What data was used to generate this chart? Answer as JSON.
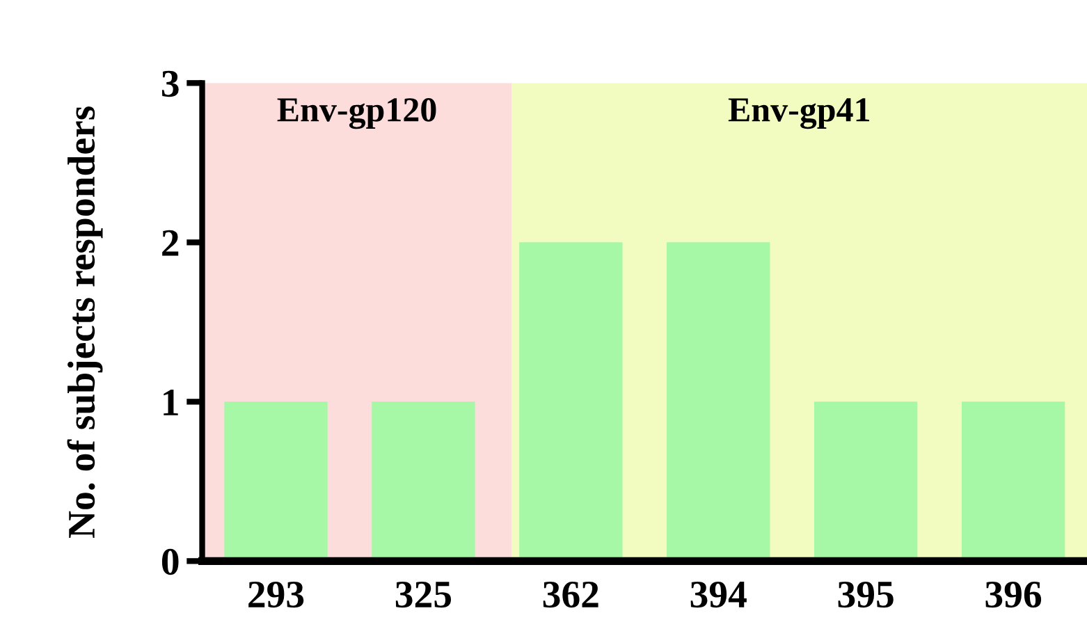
{
  "chart_data": {
    "type": "bar",
    "ylabel": "No. of subjects responders",
    "categories": [
      "293",
      "325",
      "362",
      "394",
      "395",
      "396"
    ],
    "values": [
      1,
      1,
      2,
      2,
      1,
      1
    ],
    "color": "#a6f7a6",
    "ylim": [
      0,
      3
    ],
    "yticks": [
      0,
      1,
      2,
      3
    ],
    "grid": false,
    "bands": [
      {
        "axis": "x",
        "from": "293",
        "to": "325",
        "label": "Env-gp120",
        "color": "#fddcdc"
      },
      {
        "axis": "x",
        "from": "362",
        "to": "396",
        "label": "Env-gp41",
        "color": "#f3fcc0"
      }
    ]
  }
}
